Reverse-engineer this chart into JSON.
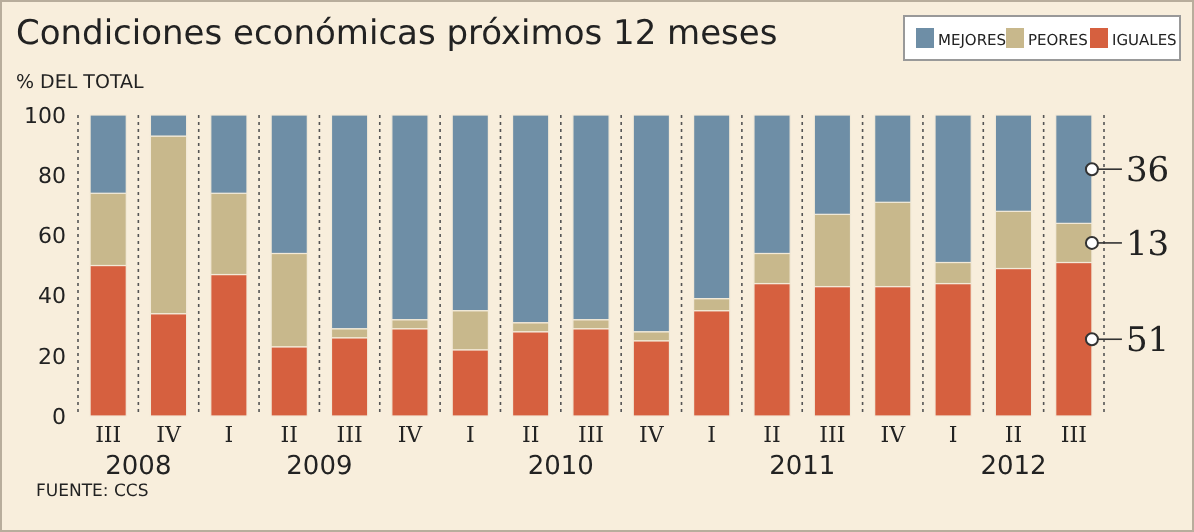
{
  "chart_data": {
    "type": "bar",
    "stacked": true,
    "title": "Condiciones económicas próximos 12 meses",
    "ylabel": "% DEL TOTAL",
    "categories": [
      "III",
      "IV",
      "I",
      "II",
      "III",
      "IV",
      "I",
      "II",
      "III",
      "IV",
      "I",
      "II",
      "III",
      "IV",
      "I",
      "II",
      "III"
    ],
    "series": [
      {
        "name": "IGUALES",
        "color": "#d6603f",
        "values": [
          50,
          34,
          47,
          23,
          26,
          29,
          22,
          28,
          29,
          25,
          35,
          44,
          43,
          43,
          44,
          49,
          51
        ],
        "value_labels": [
          null,
          null,
          null,
          null,
          null,
          null,
          null,
          null,
          null,
          null,
          null,
          null,
          null,
          null,
          null,
          null,
          "51"
        ]
      },
      {
        "name": "PEORES",
        "color": "#c8b88c",
        "values": [
          24,
          59,
          27,
          31,
          3,
          3,
          13,
          3,
          3,
          3,
          4,
          10,
          24,
          28,
          7,
          19,
          13
        ],
        "value_labels": [
          null,
          null,
          null,
          null,
          null,
          null,
          null,
          null,
          null,
          null,
          null,
          null,
          null,
          null,
          null,
          null,
          "13"
        ]
      },
      {
        "name": "MEJORES",
        "color": "#6e8ea6",
        "values": [
          26,
          7,
          26,
          46,
          71,
          68,
          65,
          69,
          68,
          72,
          61,
          46,
          33,
          29,
          49,
          32,
          36
        ],
        "value_labels": [
          null,
          null,
          null,
          null,
          null,
          null,
          null,
          null,
          null,
          null,
          null,
          null,
          null,
          null,
          null,
          null,
          "36"
        ]
      }
    ],
    "ylim": [
      0,
      100
    ],
    "yticks": [
      0,
      20,
      40,
      60,
      80,
      100
    ],
    "grid": "x",
    "legend": "top right",
    "annotations": [
      "2008",
      "2009",
      "2010",
      "2011",
      "2012",
      "FUENTE: CCS"
    ]
  }
}
